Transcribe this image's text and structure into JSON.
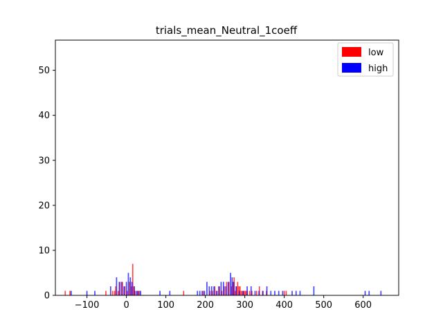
{
  "chart_data": {
    "type": "bar",
    "title": "trials_mean_Neutral_1coeff",
    "xlabel": "",
    "ylabel": "",
    "xlim": [
      -180,
      690
    ],
    "ylim": [
      0,
      56.7
    ],
    "xticks": [
      -100,
      0,
      100,
      200,
      300,
      400,
      500,
      600
    ],
    "yticks": [
      0,
      10,
      20,
      30,
      40,
      50
    ],
    "xtick_labels": [
      "−100",
      "0",
      "100",
      "200",
      "300",
      "400",
      "500",
      "600"
    ],
    "ytick_labels": [
      "0",
      "10",
      "20",
      "30",
      "40",
      "50"
    ],
    "grid": false,
    "legend_position": "top-right",
    "bin_width": 3,
    "series": [
      {
        "name": "low",
        "color": "#ff0000",
        "x": [
          -155,
          -143,
          -52,
          -35,
          -30,
          -27,
          -21,
          -16,
          -10,
          -4,
          2,
          8,
          13,
          16,
          19,
          22,
          28,
          33,
          145,
          195,
          212,
          218,
          224,
          230,
          236,
          242,
          248,
          254,
          260,
          266,
          270,
          273,
          276,
          279,
          282,
          285,
          288,
          291,
          294,
          297,
          300,
          303,
          306,
          312,
          318,
          330,
          337,
          345,
          355,
          400,
          405
        ],
        "values": [
          1,
          1,
          1,
          1,
          1,
          2,
          1,
          3,
          3,
          2,
          1,
          3,
          2,
          7,
          2,
          1,
          1,
          1,
          1,
          1,
          1,
          1,
          2,
          1,
          2,
          1,
          2,
          3,
          3,
          2,
          3,
          4,
          1,
          2,
          3,
          2,
          2,
          1,
          1,
          1,
          1,
          1,
          1,
          1,
          1,
          1,
          2,
          1,
          1,
          1,
          1
        ]
      },
      {
        "name": "high",
        "color": "#0000ff",
        "x": [
          -140,
          -100,
          -80,
          -40,
          -25,
          -18,
          -12,
          -6,
          0,
          5,
          10,
          14,
          20,
          26,
          30,
          36,
          85,
          110,
          180,
          186,
          192,
          198,
          204,
          210,
          216,
          222,
          228,
          234,
          240,
          246,
          252,
          258,
          264,
          268,
          272,
          278,
          286,
          296,
          306,
          316,
          326,
          336,
          346,
          356,
          366,
          376,
          386,
          396,
          420,
          430,
          440,
          475,
          605,
          615,
          645
        ],
        "values": [
          1,
          1,
          1,
          2,
          4,
          3,
          3,
          2,
          3,
          5,
          4,
          3,
          2,
          1,
          1,
          1,
          1,
          1,
          1,
          1,
          1,
          1,
          3,
          2,
          2,
          2,
          1,
          2,
          3,
          3,
          2,
          3,
          5,
          4,
          3,
          2,
          1,
          1,
          2,
          2,
          1,
          1,
          1,
          2,
          1,
          1,
          1,
          1,
          1,
          1,
          1,
          2,
          1,
          1,
          1
        ]
      }
    ]
  }
}
